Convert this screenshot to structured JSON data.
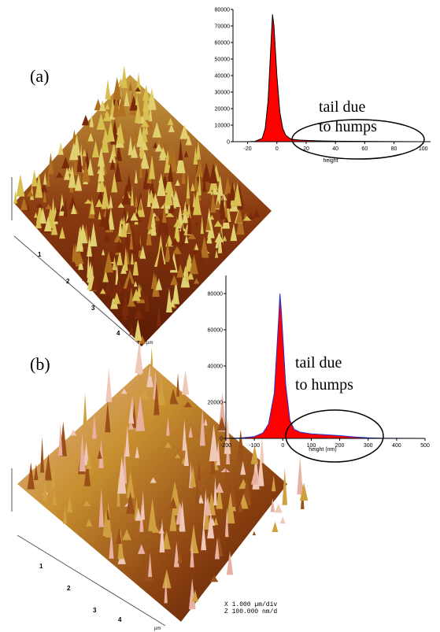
{
  "panels": [
    {
      "label": "(a)",
      "surface_ticks": [
        "1",
        "2",
        "3",
        "4"
      ],
      "surface_unit": "µm"
    },
    {
      "label": "(b)",
      "surface_ticks": [
        "1",
        "2",
        "3",
        "4"
      ],
      "surface_unit": "µm"
    }
  ],
  "scale_note": [
    "X 1.000 µm/div",
    "Z 100.000 nm/d"
  ],
  "chart_data": [
    {
      "type": "area",
      "xlabel": "height",
      "annotations": [
        "tail due",
        "to humps"
      ],
      "color": "#ff0000",
      "outline": "#000000",
      "x": [
        -30,
        -20,
        -15,
        -10,
        -8,
        -6,
        -4,
        -3,
        -2,
        0,
        2,
        4,
        6,
        8,
        10,
        15,
        20,
        30,
        40,
        60,
        80,
        95
      ],
      "values": [
        0,
        0,
        200,
        2000,
        8000,
        25000,
        60000,
        77000,
        70000,
        40000,
        18000,
        8000,
        4000,
        2500,
        1500,
        1000,
        800,
        500,
        300,
        150,
        50,
        0
      ],
      "xlim": [
        -30,
        105
      ],
      "xticks": [
        -20,
        0,
        20,
        40,
        60,
        80,
        100
      ],
      "ylim": [
        0,
        80000
      ],
      "yticks": [
        0,
        10000,
        20000,
        30000,
        40000,
        50000,
        60000,
        70000,
        80000
      ]
    },
    {
      "type": "area",
      "xlabel": "height (nm)",
      "annotations": [
        "tail due",
        "to humps"
      ],
      "color": "#ff0000",
      "outline": "#2233cc",
      "x": [
        -200,
        -150,
        -100,
        -70,
        -50,
        -30,
        -15,
        -10,
        -5,
        10,
        25,
        40,
        60,
        100,
        150,
        200,
        250,
        300,
        350,
        500
      ],
      "values": [
        0,
        200,
        1000,
        3000,
        8000,
        25000,
        65000,
        80000,
        70000,
        30000,
        10000,
        5000,
        3500,
        2500,
        2000,
        1500,
        800,
        300,
        100,
        0
      ],
      "xlim": [
        -200,
        500
      ],
      "xticks": [
        -200,
        -100,
        0,
        100,
        200,
        300,
        400,
        500
      ],
      "ylim": [
        0,
        90000
      ],
      "yticks": [
        0,
        20000,
        40000,
        60000,
        80000
      ]
    }
  ]
}
